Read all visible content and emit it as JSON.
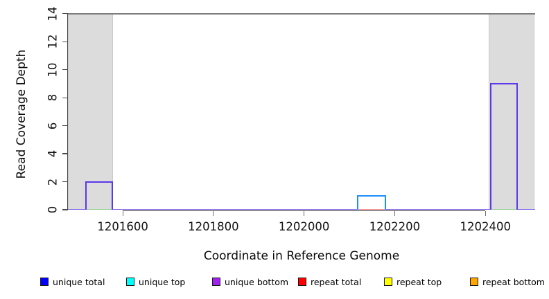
{
  "chart_data": {
    "type": "line",
    "subtype": "read-coverage-step-plot",
    "title": "",
    "xlabel": "Coordinate in Reference Genome",
    "ylabel": "Read Coverage Depth",
    "xlim": [
      1201479,
      1202509
    ],
    "ylim": [
      0,
      14
    ],
    "x_ticks": [
      1201600,
      1201800,
      1202000,
      1202200,
      1202400
    ],
    "y_ticks": [
      0,
      2,
      4,
      6,
      8,
      10,
      12,
      14
    ],
    "grid": false,
    "reference_line_y": 14,
    "reference_line_color": "#7d7d7d",
    "axis_color": "#4a4a4a",
    "tick_color": "#6e6e6e",
    "baseline_depth": 0,
    "baseline_color": "#7b5fe6",
    "shaded_regions": [
      {
        "start": 1201479,
        "end": 1201579,
        "color": "#dcdcdc"
      },
      {
        "start": 1202408,
        "end": 1202509,
        "color": "#dcdcdc"
      }
    ],
    "coverage_segments": [
      {
        "start": 1201517,
        "end": 1201578,
        "depth": 2,
        "strand": "unique bottom",
        "outline_color": "#5b38e8",
        "base_color": "#8fcd8f"
      },
      {
        "start": 1202117,
        "end": 1202181,
        "depth": 1,
        "strand": "unique top",
        "outline_color": "#1e8fff",
        "base_color": "#ee7f7f"
      },
      {
        "start": 1202410,
        "end": 1202471,
        "depth": 9,
        "strand": "unique bottom",
        "outline_color": "#5b38e8",
        "base_color": "#8fcd8f"
      }
    ],
    "legend_position": "bottom",
    "legend": [
      {
        "label": "unique total",
        "color": "#0000ff"
      },
      {
        "label": "unique top",
        "color": "#00ffff"
      },
      {
        "label": "unique bottom",
        "color": "#a020f0"
      },
      {
        "label": "repeat total",
        "color": "#ff0000"
      },
      {
        "label": "repeat top",
        "color": "#ffff00"
      },
      {
        "label": "repeat bottom",
        "color": "#ffa500"
      }
    ]
  }
}
